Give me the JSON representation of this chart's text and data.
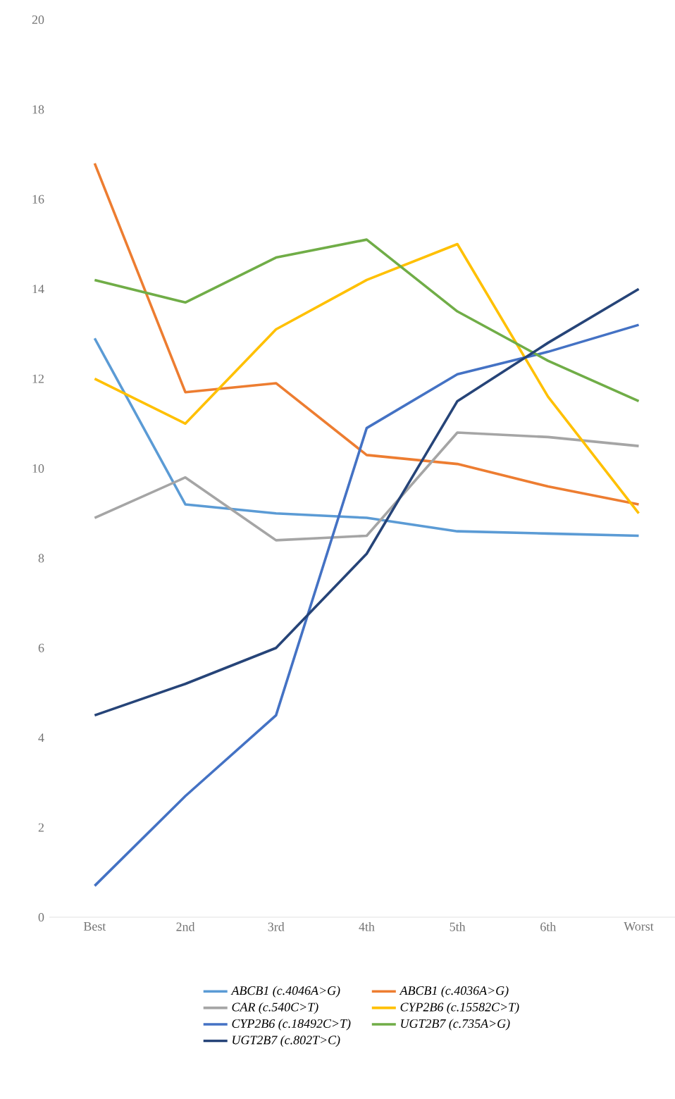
{
  "chart_data": {
    "type": "line",
    "categories": [
      "Best",
      "2nd",
      "3rd",
      "4th",
      "5th",
      "6th",
      "Worst"
    ],
    "ylim": [
      0,
      20
    ],
    "yticks": [
      0,
      2,
      4,
      6,
      8,
      10,
      12,
      14,
      16,
      18,
      20
    ],
    "grid": false,
    "legend": "bottom",
    "marker": "none",
    "line_style": "solid",
    "series": [
      {
        "name": "*ABCB1 (c.4046A>G)*",
        "color": "#5b9bd5",
        "values": [
          12.9,
          9.2,
          9.0,
          8.9,
          8.6,
          8.55,
          8.5
        ]
      },
      {
        "name": "*ABCB1 (c.4036A>G)*",
        "color": "#ed7d31",
        "values": [
          16.8,
          11.7,
          11.9,
          10.3,
          10.1,
          9.6,
          9.2
        ]
      },
      {
        "name": "*CAR (c.540C>T)*",
        "color": "#a5a5a5",
        "values": [
          8.9,
          9.8,
          8.4,
          8.5,
          10.8,
          10.7,
          10.5
        ]
      },
      {
        "name": "*CYP2B6 (c.15582C>T)*",
        "color": "#ffc000",
        "values": [
          12.0,
          11.0,
          13.1,
          14.2,
          15.0,
          11.6,
          9.0
        ]
      },
      {
        "name": "*CYP2B6 (c.18492C>T)*",
        "color": "#4472c4",
        "values": [
          0.7,
          2.7,
          4.5,
          10.9,
          12.1,
          12.6,
          13.2
        ]
      },
      {
        "name": "*UGT2B7 (c.735A>G)*",
        "color": "#70ad47",
        "values": [
          14.2,
          13.7,
          14.7,
          15.1,
          13.5,
          12.4,
          11.5
        ]
      },
      {
        "name": "*UGT2B7 (c.802T>C)*",
        "color": "#264478",
        "values": [
          4.5,
          5.2,
          6.0,
          8.1,
          11.5,
          12.8,
          14.0
        ]
      }
    ]
  }
}
